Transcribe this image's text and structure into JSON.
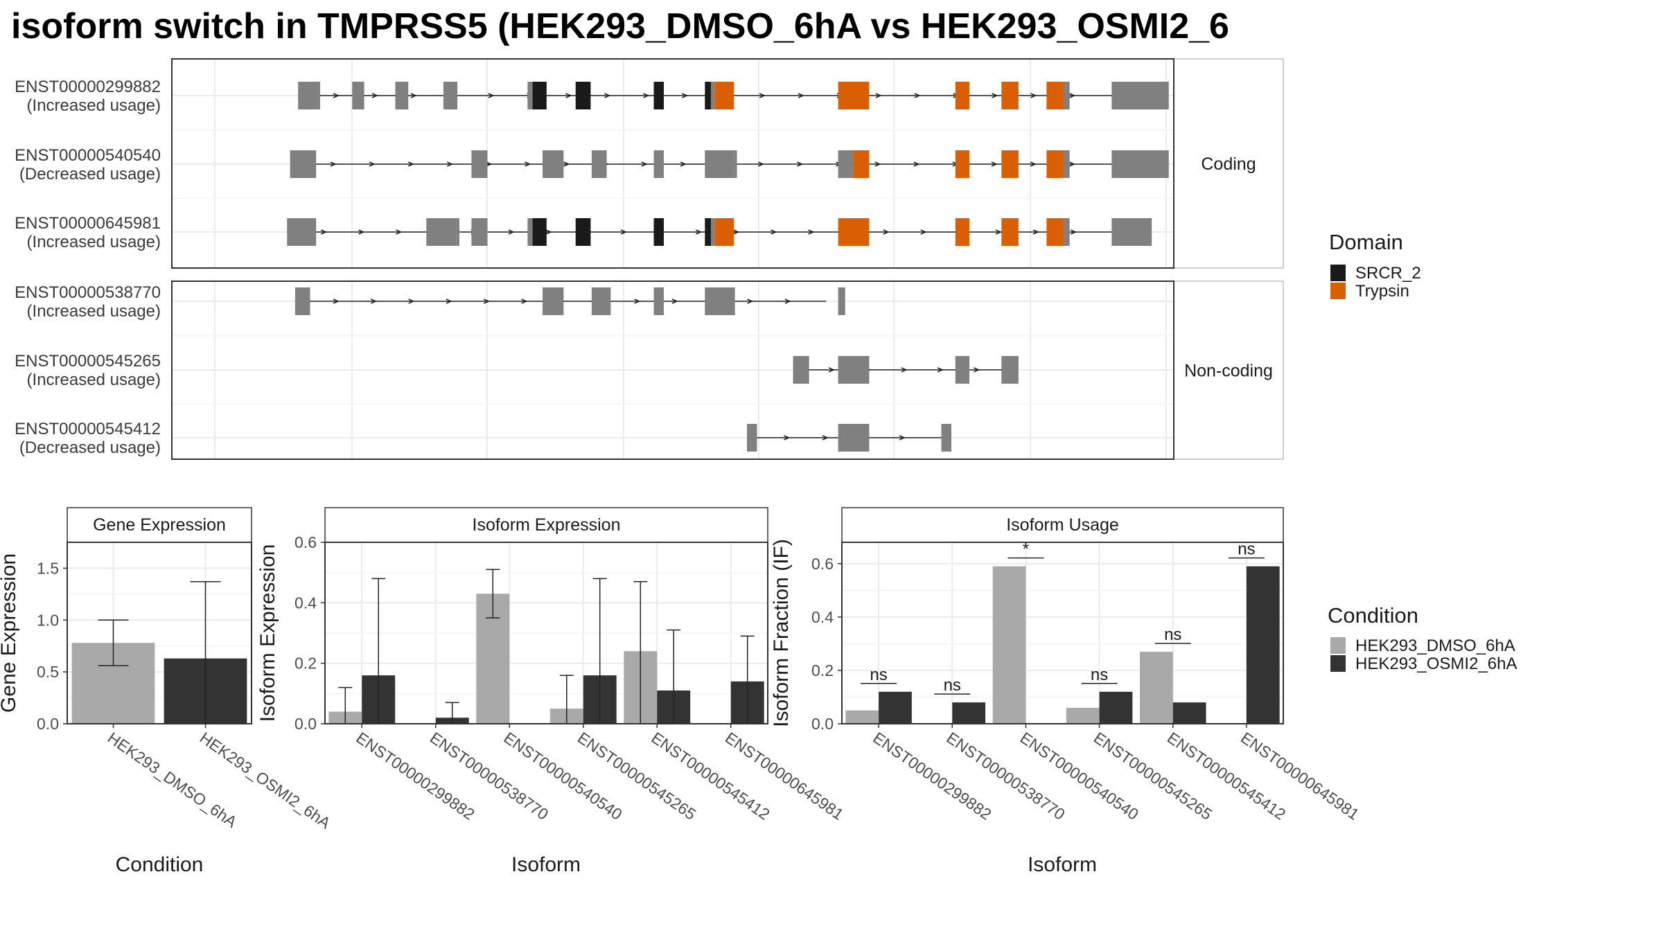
{
  "title": "isoform switch in TMPRSS5 (HEK293_DMSO_6hA vs HEK293_OSMI2_6",
  "structure": {
    "x_range": [
      0,
      100
    ],
    "transcripts": [
      {
        "id": "ENST00000299882",
        "usage": "(Increased usage)",
        "group": "coding",
        "line": [
          12.6,
          93.8
        ],
        "exons": [
          [
            12.6,
            14.6,
            "n"
          ],
          [
            14.6,
            14.8,
            "n"
          ],
          [
            18.0,
            19.2,
            "n"
          ],
          [
            22.3,
            23.6,
            "n"
          ],
          [
            27.1,
            28.5,
            "n"
          ],
          [
            35.5,
            36.0,
            "n"
          ],
          [
            36.0,
            37.4,
            "s"
          ],
          [
            40.3,
            41.8,
            "s"
          ],
          [
            48.1,
            49.1,
            "s"
          ],
          [
            53.2,
            53.8,
            "s"
          ],
          [
            53.8,
            54.2,
            "n"
          ],
          [
            54.2,
            56.1,
            "t"
          ],
          [
            66.5,
            69.6,
            "t"
          ],
          [
            78.2,
            79.6,
            "t"
          ],
          [
            82.8,
            84.5,
            "t"
          ],
          [
            87.3,
            89.0,
            "t"
          ],
          [
            89.0,
            89.6,
            "n"
          ],
          [
            93.8,
            99.5,
            "n"
          ]
        ]
      },
      {
        "id": "ENST00000540540",
        "usage": "(Decreased usage)",
        "group": "coding",
        "line": [
          12.3,
          93.8
        ],
        "exons": [
          [
            11.8,
            14.4,
            "n"
          ],
          [
            29.9,
            31.5,
            "n"
          ],
          [
            37.0,
            39.1,
            "n"
          ],
          [
            41.9,
            43.4,
            "n"
          ],
          [
            48.1,
            49.1,
            "n"
          ],
          [
            53.2,
            56.1,
            "n"
          ],
          [
            56.1,
            56.4,
            "n"
          ],
          [
            66.5,
            68.0,
            "n"
          ],
          [
            68.0,
            69.6,
            "t"
          ],
          [
            78.2,
            79.6,
            "t"
          ],
          [
            82.8,
            84.5,
            "t"
          ],
          [
            87.3,
            89.0,
            "t"
          ],
          [
            89.0,
            89.6,
            "n"
          ],
          [
            93.8,
            99.5,
            "n"
          ]
        ]
      },
      {
        "id": "ENST00000645981",
        "usage": "(Increased usage)",
        "group": "coding",
        "line": [
          11.5,
          93.8
        ],
        "exons": [
          [
            11.5,
            14.4,
            "n"
          ],
          [
            25.4,
            28.4,
            "n"
          ],
          [
            28.4,
            28.7,
            "n"
          ],
          [
            29.9,
            31.5,
            "n"
          ],
          [
            35.5,
            36.0,
            "n"
          ],
          [
            36.0,
            37.4,
            "s"
          ],
          [
            40.3,
            41.8,
            "s"
          ],
          [
            48.1,
            49.1,
            "s"
          ],
          [
            53.2,
            53.8,
            "s"
          ],
          [
            53.8,
            54.2,
            "n"
          ],
          [
            54.2,
            56.1,
            "t"
          ],
          [
            66.5,
            69.6,
            "t"
          ],
          [
            78.2,
            79.6,
            "t"
          ],
          [
            82.8,
            84.5,
            "t"
          ],
          [
            87.3,
            89.0,
            "t"
          ],
          [
            89.0,
            89.6,
            "n"
          ],
          [
            93.8,
            97.8,
            "n"
          ]
        ]
      },
      {
        "id": "ENST00000538770",
        "usage": "(Increased usage)",
        "group": "noncoding",
        "line": [
          12.7,
          65.3
        ],
        "exons": [
          [
            12.3,
            13.8,
            "n"
          ],
          [
            37.0,
            39.1,
            "n"
          ],
          [
            41.9,
            43.8,
            "n"
          ],
          [
            48.1,
            49.1,
            "n"
          ],
          [
            53.2,
            56.2,
            "n"
          ],
          [
            66.5,
            67.2,
            "n"
          ]
        ]
      },
      {
        "id": "ENST00000545265",
        "usage": "(Increased usage)",
        "group": "noncoding",
        "line": [
          62.3,
          84.0
        ],
        "exons": [
          [
            62.0,
            63.6,
            "n"
          ],
          [
            66.5,
            69.6,
            "n"
          ],
          [
            78.2,
            79.6,
            "n"
          ],
          [
            82.8,
            84.5,
            "n"
          ]
        ]
      },
      {
        "id": "ENST00000545412",
        "usage": "(Decreased usage)",
        "group": "noncoding",
        "line": [
          57.6,
          76.8
        ],
        "exons": [
          [
            57.4,
            58.4,
            "n"
          ],
          [
            66.5,
            69.6,
            "n"
          ],
          [
            76.8,
            77.8,
            "n"
          ]
        ]
      }
    ],
    "facets": {
      "coding": "Coding",
      "noncoding": "Non-coding"
    }
  },
  "colors": {
    "domain_srcr2": "#1a1a1a",
    "domain_trypsin": "#d95f02",
    "no_domain": "#808080",
    "dmso": "#a9a9a9",
    "osmi2": "#333333",
    "panel_border": "#333333",
    "strip_border": "#bdbdbd",
    "grid": "#ebebeb"
  },
  "domain_legend": {
    "title": "Domain",
    "items": [
      {
        "label": "SRCR_2",
        "color": "#1a1a1a"
      },
      {
        "label": "Trypsin",
        "color": "#d95f02"
      }
    ]
  },
  "condition_legend": {
    "title": "Condition",
    "items": [
      {
        "label": "HEK293_DMSO_6hA",
        "color": "#a9a9a9"
      },
      {
        "label": "HEK293_OSMI2_6hA",
        "color": "#333333"
      }
    ]
  },
  "chart_data": [
    {
      "type": "bar",
      "title": "Gene Expression",
      "xlabel": "Condition",
      "ylabel": "Gene Expression",
      "ylim": [
        0,
        1.75
      ],
      "yticks": [
        "0.0",
        "0.5",
        "1.0",
        "1.5"
      ],
      "categories": [
        "HEK293_DMSO_6hA",
        "HEK293_OSMI2_6hA"
      ],
      "values": [
        0.78,
        0.63
      ],
      "errors": [
        [
          0.56,
          1.0
        ],
        [
          0.0,
          1.37
        ]
      ]
    },
    {
      "type": "bar",
      "title": "Isoform Expression",
      "xlabel": "Isoform",
      "ylabel": "Isoform Expression",
      "ylim": [
        0,
        0.6
      ],
      "yticks": [
        "0.0",
        "0.2",
        "0.4",
        "0.6"
      ],
      "categories": [
        "ENST00000299882",
        "ENST00000538770",
        "ENST00000540540",
        "ENST00000545265",
        "ENST00000545412",
        "ENST00000645981"
      ],
      "series": [
        {
          "name": "HEK293_DMSO_6hA",
          "values": [
            0.04,
            0.0,
            0.43,
            0.05,
            0.24,
            0.0
          ],
          "errors": [
            [
              0.0,
              0.12
            ],
            [
              0.0,
              0.0
            ],
            [
              0.35,
              0.51
            ],
            [
              0.0,
              0.16
            ],
            [
              0.0,
              0.47
            ],
            [
              0.0,
              0.0
            ]
          ]
        },
        {
          "name": "HEK293_OSMI2_6hA",
          "values": [
            0.16,
            0.02,
            0.0,
            0.16,
            0.11,
            0.14
          ],
          "errors": [
            [
              0.0,
              0.48
            ],
            [
              0.0,
              0.07
            ],
            [
              0.0,
              0.0
            ],
            [
              0.0,
              0.48
            ],
            [
              0.0,
              0.31
            ],
            [
              0.0,
              0.29
            ]
          ]
        }
      ]
    },
    {
      "type": "bar",
      "title": "Isoform Usage",
      "xlabel": "Isoform",
      "ylabel": "Isoform Fraction (IF)",
      "ylim": [
        0,
        0.68
      ],
      "yticks": [
        "0.0",
        "0.2",
        "0.4",
        "0.6"
      ],
      "categories": [
        "ENST00000299882",
        "ENST00000538770",
        "ENST00000540540",
        "ENST00000545265",
        "ENST00000545412",
        "ENST00000645981"
      ],
      "series": [
        {
          "name": "HEK293_DMSO_6hA",
          "values": [
            0.05,
            0.0,
            0.59,
            0.06,
            0.27,
            0.0
          ]
        },
        {
          "name": "HEK293_OSMI2_6hA",
          "values": [
            0.12,
            0.08,
            0.0,
            0.12,
            0.08,
            0.59
          ]
        }
      ],
      "significance": [
        "ns",
        "ns",
        "*",
        "ns",
        "ns",
        "ns"
      ]
    }
  ]
}
